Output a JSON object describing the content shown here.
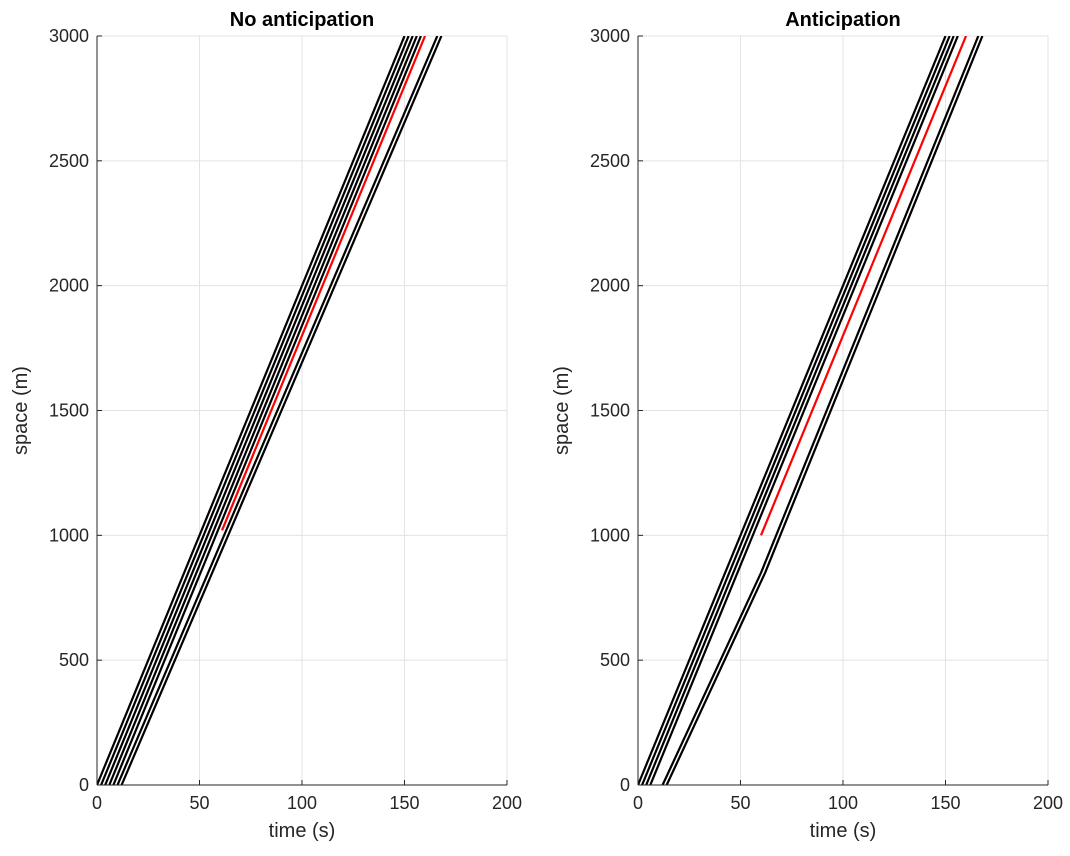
{
  "chart_data": [
    {
      "type": "line",
      "title": "No anticipation",
      "xlabel": "time (s)",
      "ylabel": "space (m)",
      "xlim": [
        0,
        200
      ],
      "ylim": [
        0,
        3000
      ],
      "xticks": [
        0,
        50,
        100,
        150,
        200
      ],
      "yticks": [
        0,
        500,
        1000,
        1500,
        2000,
        2500,
        3000
      ],
      "grid": true,
      "series": [
        {
          "color": "#000000",
          "x": [
            0,
            150
          ],
          "y": [
            0,
            3000
          ]
        },
        {
          "color": "#000000",
          "x": [
            2,
            152
          ],
          "y": [
            0,
            3000
          ]
        },
        {
          "color": "#000000",
          "x": [
            4,
            154
          ],
          "y": [
            0,
            3000
          ]
        },
        {
          "color": "#000000",
          "x": [
            6,
            156
          ],
          "y": [
            0,
            3000
          ]
        },
        {
          "color": "#000000",
          "x": [
            8,
            158
          ],
          "y": [
            0,
            3000
          ]
        },
        {
          "color": "#000000",
          "x": [
            10,
            166
          ],
          "y": [
            0,
            3000
          ]
        },
        {
          "color": "#000000",
          "x": [
            12,
            168
          ],
          "y": [
            0,
            3000
          ]
        },
        {
          "color": "#ff0000",
          "x": [
            61,
            160
          ],
          "y": [
            1020,
            3000
          ]
        }
      ]
    },
    {
      "type": "line",
      "title": "Anticipation",
      "xlabel": "time (s)",
      "ylabel": "space (m)",
      "xlim": [
        0,
        200
      ],
      "ylim": [
        0,
        3000
      ],
      "xticks": [
        0,
        50,
        100,
        150,
        200
      ],
      "yticks": [
        0,
        500,
        1000,
        1500,
        2000,
        2500,
        3000
      ],
      "grid": true,
      "series": [
        {
          "color": "#000000",
          "x": [
            0,
            150
          ],
          "y": [
            0,
            3000
          ]
        },
        {
          "color": "#000000",
          "x": [
            2,
            152
          ],
          "y": [
            0,
            3000
          ]
        },
        {
          "color": "#000000",
          "x": [
            4,
            154
          ],
          "y": [
            0,
            3000
          ]
        },
        {
          "color": "#000000",
          "x": [
            6,
            156
          ],
          "y": [
            0,
            3000
          ]
        },
        {
          "color": "#000000",
          "x": [
            12,
            60,
            166
          ],
          "y": [
            0,
            850,
            3000
          ]
        },
        {
          "color": "#000000",
          "x": [
            14,
            62,
            168
          ],
          "y": [
            0,
            850,
            3000
          ]
        },
        {
          "color": "#ff0000",
          "x": [
            60,
            160
          ],
          "y": [
            1000,
            3000
          ]
        }
      ]
    }
  ]
}
